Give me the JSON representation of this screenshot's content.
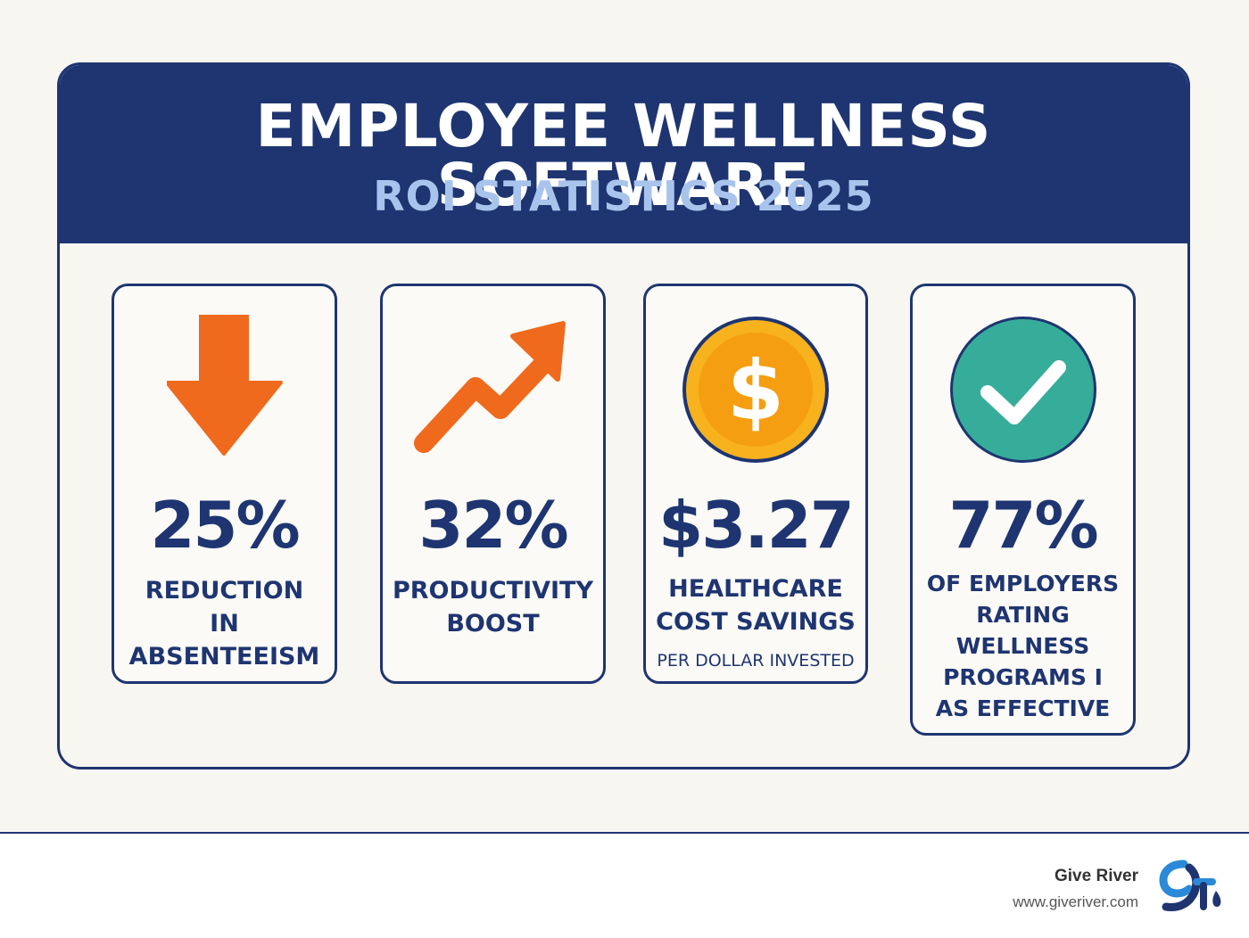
{
  "header": {
    "title": "EMPLOYEE WELLNESS SOFTWARE",
    "subtitle": "ROI STATISTICS 2025"
  },
  "cards": [
    {
      "icon": "down-arrow-icon",
      "value": "25%",
      "label": "REDUCTION\nIN ABSENTEEISM"
    },
    {
      "icon": "trending-up-arrow-icon",
      "value": "32%",
      "label": "PRODUCTIVITY\nBOOST"
    },
    {
      "icon": "dollar-coin-icon",
      "value": "$3.27",
      "label": "HEALTHCARE\nCOST SAVINGS",
      "note": "PER DOLLAR INVESTED"
    },
    {
      "icon": "checkmark-circle-icon",
      "value": "77%",
      "label": "OF EMPLOYERS\nRATING\nWELLNESS\nPROGRAMS I\nAS EFFECTIVE"
    }
  ],
  "footer": {
    "brand_name": "Give River",
    "brand_url": "www.giveriver.com",
    "logo_icon": "give-river-logo-icon"
  },
  "colors": {
    "navy": "#1e3571",
    "banner_subtitle": "#a9c4ec",
    "orange": "#f06a1d",
    "coin_gold": "#f7b21e",
    "teal": "#36ad9a",
    "background": "#f8f6f1"
  }
}
